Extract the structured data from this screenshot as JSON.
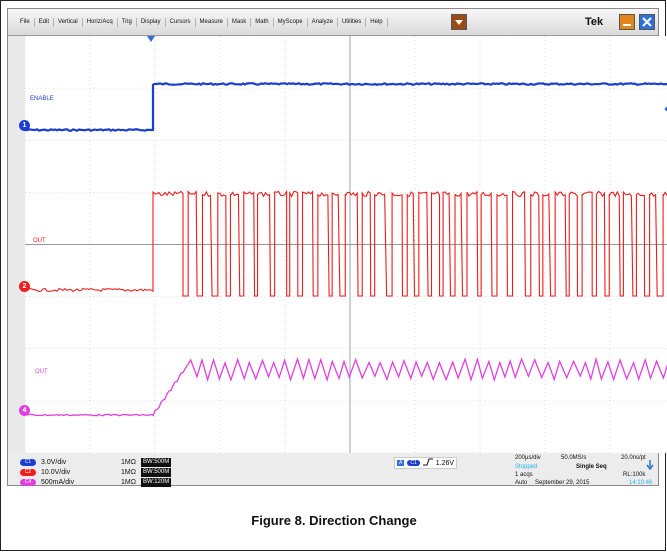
{
  "menu": {
    "items": [
      "File",
      "Edit",
      "Vertical",
      "Horiz/Acq",
      "Trig",
      "Display",
      "Cursors",
      "Measure",
      "Mask",
      "Math",
      "MyScope",
      "Analyze",
      "Utilities",
      "Help"
    ],
    "brand": "Tek"
  },
  "colors": {
    "ch1": "#1a3fd0",
    "ch2": "#ee1c1c",
    "ch4": "#e040e0",
    "grid": "#bfbfbf"
  },
  "waveforms": {
    "ch1_label": "ENABLE",
    "ch2_label": "OUT",
    "ch4_label": "OUT",
    "ch1_marker": "1",
    "ch2_marker": "2",
    "ch4_marker": "4"
  },
  "channels": [
    {
      "tag": "C1",
      "scale": "3.0V/div",
      "impedance": "1MΩ",
      "bw": "BW:500M"
    },
    {
      "tag": "C2",
      "scale": "10.0V/div",
      "impedance": "1MΩ",
      "bw": "BW:500M"
    },
    {
      "tag": "C4",
      "scale": "500mA/div",
      "impedance": "1MΩ",
      "bw": "BW:120M"
    }
  ],
  "trigger": {
    "source": "C1",
    "level": "1.26V"
  },
  "acquisition": {
    "timebase": "200µs/div",
    "sample_rate": "50.0MS/s",
    "resolution": "20.0ns/pt",
    "state": "Stopped",
    "mode": "Single Seq",
    "acqs": "1 acqs",
    "record_length": "RL:100k",
    "trigger_mode": "Auto",
    "date": "September 29, 2015",
    "time": "14:10:46"
  },
  "caption": "Figure 8. Direction Change"
}
